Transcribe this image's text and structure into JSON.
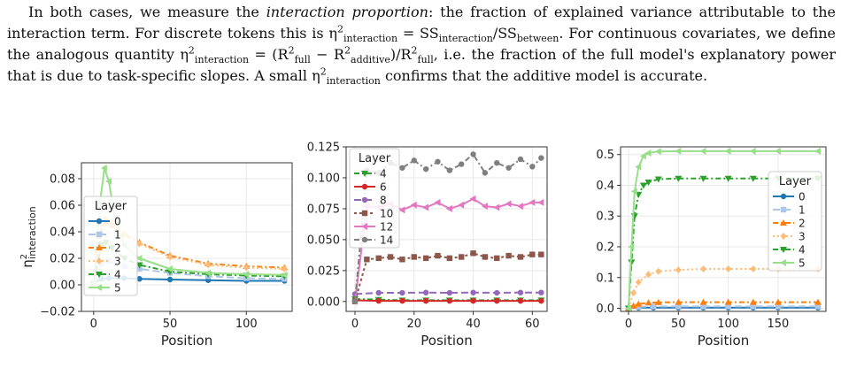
{
  "paragraph": {
    "s1_a": "In both cases, we measure the ",
    "s1_em": "interaction proportion",
    "s1_b": ": the fraction of explained variance attributable to the interaction term. For discrete tokens this is ",
    "eta": "η",
    "sup2": "2",
    "sub_interaction": "interaction",
    "eq1_mid": " = SS",
    "eq1_slash": "/SS",
    "sub_between": "between",
    "s2_a": ". For continuous covariates, we define the analogous quantity ",
    "eq2_mid": " = (R",
    "sub_full": "full",
    "eq2_minus": " − R",
    "sub_additive": "additive",
    "eq2_div": ")/R",
    "s2_b": ", i.e. the fraction of the full model's explanatory power that is due to task-specific slopes. A small ",
    "s2_c": " confirms that the additive model is accurate."
  },
  "chart_data": [
    {
      "type": "line",
      "xlabel": "Position",
      "ylabel": "η²interaction",
      "xlim": [
        -8,
        130
      ],
      "ylim": [
        -0.02,
        0.092
      ],
      "xticks": [
        0,
        50,
        100
      ],
      "yticks": [
        -0.02,
        0.0,
        0.02,
        0.04,
        0.06,
        0.08
      ],
      "ytick_labels": [
        "−0.02",
        "0.00",
        "0.02",
        "0.04",
        "0.06",
        "0.08"
      ],
      "legend": {
        "title": "Layer",
        "position": "center-left"
      },
      "series": [
        {
          "name": "0",
          "color": "#1f77b4",
          "dash": "",
          "marker": "circle",
          "x": [
            0,
            5,
            10,
            20,
            30,
            50,
            75,
            100,
            125
          ],
          "y": [
            0.001,
            0.0045,
            0.005,
            0.005,
            0.0045,
            0.004,
            0.0035,
            0.003,
            0.003
          ]
        },
        {
          "name": "1",
          "color": "#aec7e8",
          "dash": "8,4",
          "marker": "square",
          "x": [
            0,
            5,
            10,
            20,
            30,
            50,
            75,
            100,
            125
          ],
          "y": [
            0.001,
            0.016,
            0.018,
            0.014,
            0.012,
            0.009,
            0.0065,
            0.005,
            0.0045
          ]
        },
        {
          "name": "2",
          "color": "#ff7f0e",
          "dash": "6,3,2,3",
          "marker": "triangle-up",
          "x": [
            0,
            5,
            8,
            12,
            20,
            30,
            50,
            75,
            100,
            125
          ],
          "y": [
            0.001,
            0.04,
            0.047,
            0.045,
            0.038,
            0.032,
            0.022,
            0.016,
            0.014,
            0.013
          ]
        },
        {
          "name": "3",
          "color": "#ffbb78",
          "dash": "2,3",
          "marker": "diamond",
          "x": [
            0,
            5,
            8,
            12,
            20,
            30,
            50,
            75,
            100,
            125
          ],
          "y": [
            0.001,
            0.045,
            0.05,
            0.046,
            0.038,
            0.031,
            0.021,
            0.015,
            0.013,
            0.012
          ]
        },
        {
          "name": "4",
          "color": "#2ca02c",
          "dash": "6,3,2,3",
          "marker": "triangle-down",
          "x": [
            0,
            5,
            8,
            12,
            20,
            30,
            50,
            75,
            100,
            125
          ],
          "y": [
            0.001,
            0.03,
            0.032,
            0.028,
            0.02,
            0.015,
            0.01,
            0.008,
            0.007,
            0.0065
          ]
        },
        {
          "name": "5",
          "color": "#98df8a",
          "dash": "",
          "marker": "triangle-left",
          "x": [
            0,
            4,
            7,
            10,
            14,
            20,
            30,
            50,
            75,
            100,
            125
          ],
          "y": [
            0.001,
            0.06,
            0.088,
            0.078,
            0.05,
            0.03,
            0.02,
            0.012,
            0.009,
            0.008,
            0.0075
          ]
        }
      ]
    },
    {
      "type": "line",
      "xlabel": "Position",
      "ylabel": "",
      "xlim": [
        -3,
        65
      ],
      "ylim": [
        -0.008,
        0.125
      ],
      "xticks": [
        0,
        20,
        40,
        60
      ],
      "yticks": [
        0.0,
        0.025,
        0.05,
        0.075,
        0.1,
        0.125
      ],
      "ytick_labels": [
        "0.000",
        "0.025",
        "0.050",
        "0.075",
        "0.100",
        "0.125"
      ],
      "legend": {
        "title": "Layer",
        "position": "top-left"
      },
      "series": [
        {
          "name": "4",
          "color": "#2ca02c",
          "dash": "6,3,2,3",
          "marker": "triangle-down",
          "x": [
            0,
            8,
            16,
            24,
            32,
            40,
            48,
            56,
            63
          ],
          "y": [
            0.002,
            0.0015,
            0.001,
            0.001,
            0.001,
            0.001,
            0.001,
            0.001,
            0.001
          ]
        },
        {
          "name": "6",
          "color": "#d62728",
          "dash": "",
          "marker": "circle",
          "x": [
            0,
            8,
            16,
            24,
            32,
            40,
            48,
            56,
            63
          ],
          "y": [
            0.001,
            0.0005,
            0.0005,
            0.0005,
            0.0005,
            0.0005,
            0.0005,
            0.0005,
            0.0005
          ]
        },
        {
          "name": "8",
          "color": "#9467bd",
          "dash": "8,4",
          "marker": "circle",
          "x": [
            0,
            8,
            16,
            24,
            32,
            40,
            48,
            56,
            63
          ],
          "y": [
            0.006,
            0.007,
            0.007,
            0.0072,
            0.007,
            0.0072,
            0.007,
            0.0072,
            0.0072
          ]
        },
        {
          "name": "10",
          "color": "#8c564b",
          "dash": "3,3",
          "marker": "square",
          "x": [
            0,
            4,
            8,
            12,
            16,
            20,
            24,
            28,
            32,
            36,
            40,
            44,
            48,
            52,
            56,
            60,
            63
          ],
          "y": [
            0.0,
            0.034,
            0.035,
            0.036,
            0.034,
            0.036,
            0.035,
            0.037,
            0.035,
            0.036,
            0.039,
            0.036,
            0.035,
            0.037,
            0.036,
            0.038,
            0.038
          ]
        },
        {
          "name": "12",
          "color": "#e377c2",
          "dash": "",
          "marker": "triangle-left",
          "x": [
            0,
            4,
            8,
            12,
            16,
            20,
            24,
            28,
            32,
            36,
            40,
            44,
            48,
            52,
            56,
            60,
            63
          ],
          "y": [
            0.0,
            0.077,
            0.076,
            0.079,
            0.074,
            0.078,
            0.076,
            0.08,
            0.075,
            0.078,
            0.083,
            0.077,
            0.076,
            0.079,
            0.077,
            0.08,
            0.08
          ]
        },
        {
          "name": "14",
          "color": "#7f7f7f",
          "dash": "6,3,2,3",
          "marker": "circle",
          "x": [
            0,
            4,
            8,
            12,
            16,
            20,
            24,
            28,
            32,
            36,
            40,
            44,
            48,
            52,
            56,
            60,
            63
          ],
          "y": [
            0.0,
            0.106,
            0.104,
            0.112,
            0.108,
            0.114,
            0.107,
            0.113,
            0.106,
            0.111,
            0.119,
            0.104,
            0.112,
            0.108,
            0.115,
            0.109,
            0.116
          ]
        }
      ]
    },
    {
      "type": "line",
      "xlabel": "Position",
      "ylabel": "",
      "xlim": [
        -8,
        198
      ],
      "ylim": [
        -0.01,
        0.525
      ],
      "xticks": [
        0,
        50,
        100,
        150
      ],
      "yticks": [
        0.0,
        0.1,
        0.2,
        0.3,
        0.4,
        0.5
      ],
      "ytick_labels": [
        "0.0",
        "0.1",
        "0.2",
        "0.3",
        "0.4",
        "0.5"
      ],
      "legend": {
        "title": "Layer",
        "position": "center-right"
      },
      "series": [
        {
          "name": "0",
          "color": "#1f77b4",
          "dash": "",
          "marker": "circle",
          "x": [
            0,
            10,
            25,
            50,
            75,
            100,
            125,
            150,
            190
          ],
          "y": [
            0.0,
            0.002,
            0.002,
            0.002,
            0.002,
            0.002,
            0.002,
            0.002,
            0.002
          ]
        },
        {
          "name": "1",
          "color": "#aec7e8",
          "dash": "8,4",
          "marker": "square",
          "x": [
            0,
            10,
            25,
            50,
            75,
            100,
            125,
            150,
            190
          ],
          "y": [
            0.0,
            0.005,
            0.006,
            0.006,
            0.006,
            0.006,
            0.006,
            0.006,
            0.006
          ]
        },
        {
          "name": "2",
          "color": "#ff7f0e",
          "dash": "6,3,2,3",
          "marker": "triangle-up",
          "x": [
            0,
            5,
            10,
            20,
            30,
            50,
            75,
            100,
            125,
            150,
            190
          ],
          "y": [
            0.0,
            0.008,
            0.014,
            0.018,
            0.019,
            0.02,
            0.02,
            0.02,
            0.02,
            0.02,
            0.02
          ]
        },
        {
          "name": "3",
          "color": "#ffbb78",
          "dash": "2,3",
          "marker": "diamond",
          "x": [
            0,
            5,
            10,
            20,
            30,
            50,
            75,
            100,
            125,
            150,
            190
          ],
          "y": [
            0.0,
            0.05,
            0.085,
            0.11,
            0.12,
            0.125,
            0.128,
            0.128,
            0.128,
            0.128,
            0.128
          ]
        },
        {
          "name": "4",
          "color": "#2ca02c",
          "dash": "6,3,2,3",
          "marker": "triangle-down",
          "x": [
            0,
            3,
            6,
            10,
            15,
            20,
            30,
            50,
            75,
            100,
            125,
            150,
            190
          ],
          "y": [
            0.0,
            0.15,
            0.3,
            0.37,
            0.4,
            0.41,
            0.42,
            0.422,
            0.422,
            0.422,
            0.422,
            0.422,
            0.422
          ]
        },
        {
          "name": "5",
          "color": "#98df8a",
          "dash": "",
          "marker": "triangle-left",
          "x": [
            0,
            3,
            6,
            10,
            15,
            20,
            30,
            50,
            75,
            100,
            125,
            150,
            190
          ],
          "y": [
            0.0,
            0.2,
            0.38,
            0.46,
            0.495,
            0.505,
            0.51,
            0.511,
            0.511,
            0.511,
            0.511,
            0.511,
            0.511
          ]
        }
      ]
    }
  ]
}
